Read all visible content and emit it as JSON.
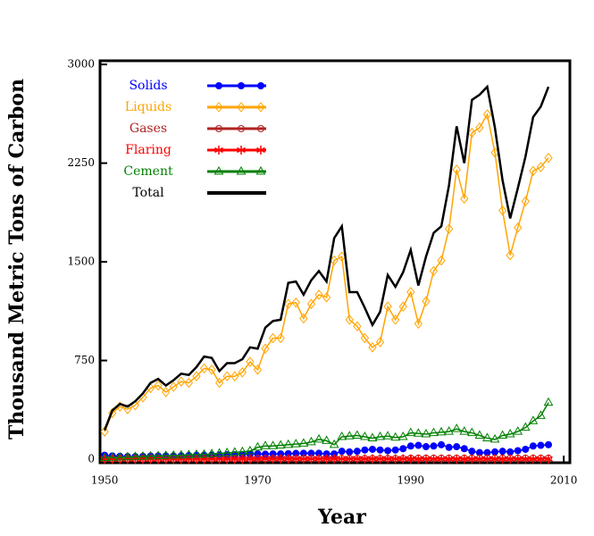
{
  "chart_data": {
    "type": "line",
    "xlabel": "Year",
    "ylabel": "Thousand Metric Tons of Carbon",
    "x": [
      1950,
      1951,
      1952,
      1953,
      1954,
      1955,
      1956,
      1957,
      1958,
      1959,
      1960,
      1961,
      1962,
      1963,
      1964,
      1965,
      1966,
      1967,
      1968,
      1969,
      1970,
      1971,
      1972,
      1973,
      1974,
      1975,
      1976,
      1977,
      1978,
      1979,
      1980,
      1981,
      1982,
      1983,
      1984,
      1985,
      1986,
      1987,
      1988,
      1989,
      1990,
      1991,
      1992,
      1993,
      1994,
      1995,
      1996,
      1997,
      1998,
      1999,
      2000,
      2001,
      2002,
      2003,
      2004,
      2005,
      2006,
      2007,
      2008
    ],
    "xlim": [
      1949.4,
      2010.8
    ],
    "xticks": [
      1950,
      1970,
      1990,
      2010
    ],
    "ylim": [
      -27,
      3028
    ],
    "yticks": [
      0,
      750,
      1500,
      2250,
      3000
    ],
    "series": [
      {
        "name": "Solids",
        "color": "#0000ff",
        "marker": "circle-filled",
        "values": [
          30,
          25,
          22,
          20,
          20,
          22,
          24,
          25,
          25,
          24,
          26,
          28,
          30,
          30,
          32,
          32,
          34,
          34,
          36,
          38,
          40,
          38,
          40,
          40,
          42,
          44,
          45,
          45,
          45,
          40,
          40,
          60,
          55,
          60,
          70,
          75,
          70,
          65,
          70,
          80,
          100,
          105,
          95,
          100,
          110,
          90,
          95,
          80,
          60,
          50,
          50,
          55,
          60,
          55,
          65,
          75,
          100,
          105,
          110
        ]
      },
      {
        "name": "Liquids",
        "color": "#ffa500",
        "marker": "diamond-open",
        "values": [
          210,
          350,
          400,
          380,
          410,
          470,
          540,
          560,
          510,
          550,
          590,
          580,
          630,
          690,
          680,
          580,
          630,
          630,
          660,
          740,
          680,
          840,
          920,
          920,
          1180,
          1190,
          1070,
          1180,
          1250,
          1230,
          1510,
          1540,
          1060,
          1010,
          920,
          850,
          890,
          1160,
          1060,
          1160,
          1270,
          1030,
          1200,
          1430,
          1510,
          1750,
          2200,
          1980,
          2480,
          2520,
          2620,
          2330,
          1890,
          1550,
          1760,
          1960,
          2190,
          2220,
          2290
        ]
      },
      {
        "name": "Gases",
        "color": "#b22222",
        "marker": "circle-open",
        "values": [
          2,
          2,
          2,
          2,
          2,
          2,
          2,
          2,
          2,
          2,
          2,
          2,
          2,
          2,
          2,
          2,
          2,
          2,
          2,
          2,
          5,
          5,
          5,
          5,
          5,
          5,
          5,
          5,
          5,
          5,
          5,
          5,
          5,
          5,
          5,
          5,
          5,
          5,
          5,
          5,
          8,
          8,
          8,
          8,
          8,
          8,
          8,
          8,
          8,
          8,
          8,
          8,
          8,
          8,
          8,
          8,
          8,
          8,
          8
        ]
      },
      {
        "name": "Flaring",
        "color": "#ff0000",
        "marker": "asterisk",
        "values": [
          1,
          1,
          1,
          1,
          1,
          1,
          1,
          1,
          1,
          1,
          1,
          1,
          1,
          1,
          1,
          1,
          1,
          1,
          1,
          1,
          3,
          3,
          3,
          3,
          3,
          3,
          3,
          3,
          3,
          3,
          3,
          3,
          3,
          3,
          3,
          3,
          3,
          3,
          3,
          3,
          2,
          2,
          2,
          2,
          2,
          2,
          2,
          2,
          2,
          2,
          2,
          2,
          2,
          2,
          2,
          2,
          2,
          2,
          2
        ]
      },
      {
        "name": "Cement",
        "color": "#008000",
        "marker": "triangle-open",
        "values": [
          10,
          12,
          14,
          16,
          18,
          20,
          22,
          24,
          26,
          28,
          30,
          32,
          34,
          36,
          40,
          44,
          48,
          52,
          56,
          62,
          90,
          100,
          100,
          105,
          110,
          115,
          120,
          130,
          150,
          140,
          110,
          170,
          175,
          180,
          170,
          160,
          170,
          175,
          165,
          170,
          200,
          195,
          190,
          200,
          205,
          210,
          230,
          210,
          200,
          180,
          160,
          150,
          180,
          190,
          210,
          240,
          290,
          330,
          430
        ]
      },
      {
        "name": "Total",
        "color": "#000000",
        "marker": "none",
        "values": [
          220,
          370,
          420,
          400,
          440,
          500,
          580,
          610,
          560,
          600,
          650,
          640,
          700,
          780,
          770,
          670,
          730,
          730,
          760,
          850,
          840,
          1000,
          1050,
          1060,
          1340,
          1350,
          1250,
          1360,
          1430,
          1350,
          1680,
          1770,
          1270,
          1270,
          1150,
          1020,
          1120,
          1400,
          1310,
          1420,
          1590,
          1320,
          1540,
          1720,
          1770,
          2080,
          2530,
          2250,
          2730,
          2770,
          2830,
          2520,
          2120,
          1830,
          2060,
          2300,
          2600,
          2680,
          2830
        ]
      }
    ]
  }
}
